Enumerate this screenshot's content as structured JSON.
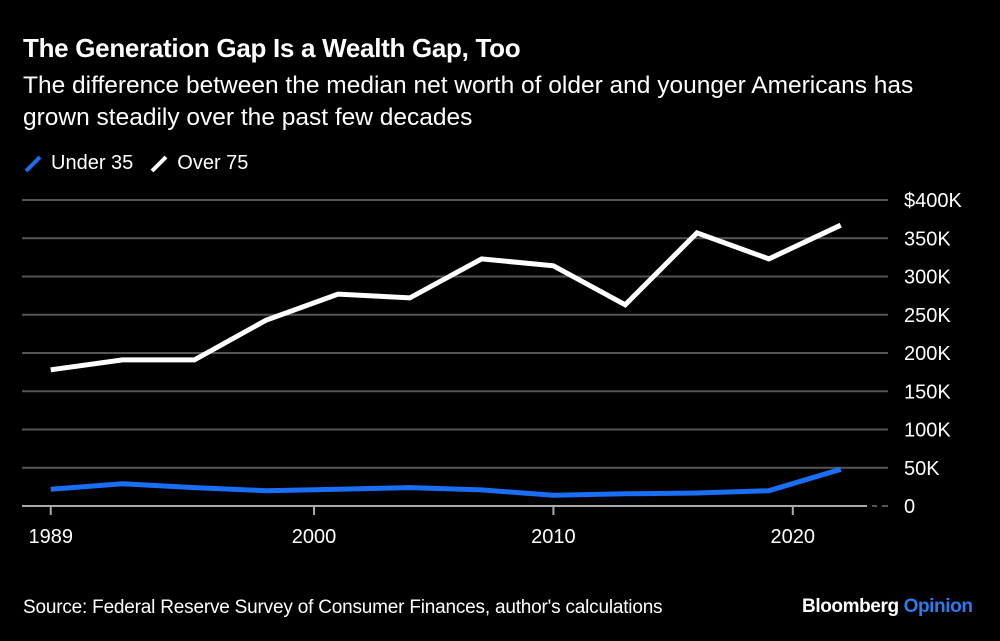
{
  "header": {
    "title": "The Generation Gap Is a Wealth Gap, Too",
    "subtitle": "The difference between the median net worth of older and younger Americans has grown steadily over the past few decades"
  },
  "legend": [
    {
      "label": "Under 35",
      "color": "#1a6ef5"
    },
    {
      "label": "Over 75",
      "color": "#ffffff"
    }
  ],
  "footer": {
    "source": "Source: Federal Reserve Survey of Consumer Finances, author's calculations",
    "brand_main": "Bloomberg",
    "brand_sub": "Opinion"
  },
  "colors": {
    "background": "#000000",
    "gridline": "#555555",
    "axis": "#aaaaaa",
    "under35": "#1a6ef5",
    "over75": "#ffffff",
    "brand_accent": "#2b7bf0"
  },
  "chart_data": {
    "type": "line",
    "title": "The Generation Gap Is a Wealth Gap, Too",
    "subtitle": "The difference between the median net worth of older and younger Americans has grown steadily over the past few decades",
    "xlabel": "",
    "ylabel": "",
    "x": [
      1989,
      1992,
      1995,
      1998,
      2001,
      2004,
      2007,
      2010,
      2013,
      2016,
      2019,
      2022
    ],
    "series": [
      {
        "name": "Under 35",
        "color": "#1a6ef5",
        "values": [
          22,
          29,
          24,
          20,
          22,
          24,
          21,
          14,
          16,
          17,
          20,
          48
        ]
      },
      {
        "name": "Over 75",
        "color": "#ffffff",
        "values": [
          178,
          191,
          191,
          243,
          277,
          272,
          323,
          314,
          263,
          357,
          323,
          367
        ]
      }
    ],
    "units": "thousands of US dollars",
    "xlim": [
      1987.8,
      2023.1
    ],
    "ylim": [
      0,
      400
    ],
    "x_ticks": [
      1989,
      2000,
      2010,
      2020
    ],
    "x_tick_labels": [
      "1989",
      "2000",
      "2010",
      "2020"
    ],
    "y_ticks": [
      0,
      50,
      100,
      150,
      200,
      250,
      300,
      350,
      400
    ],
    "y_tick_labels": [
      "0",
      "50K",
      "100K",
      "150K",
      "200K",
      "250K",
      "300K",
      "350K",
      "$400K"
    ],
    "y_axis_side": "right",
    "grid": true,
    "legend_position": "top-left",
    "source": "Source: Federal Reserve Survey of Consumer Finances, author's calculations"
  }
}
